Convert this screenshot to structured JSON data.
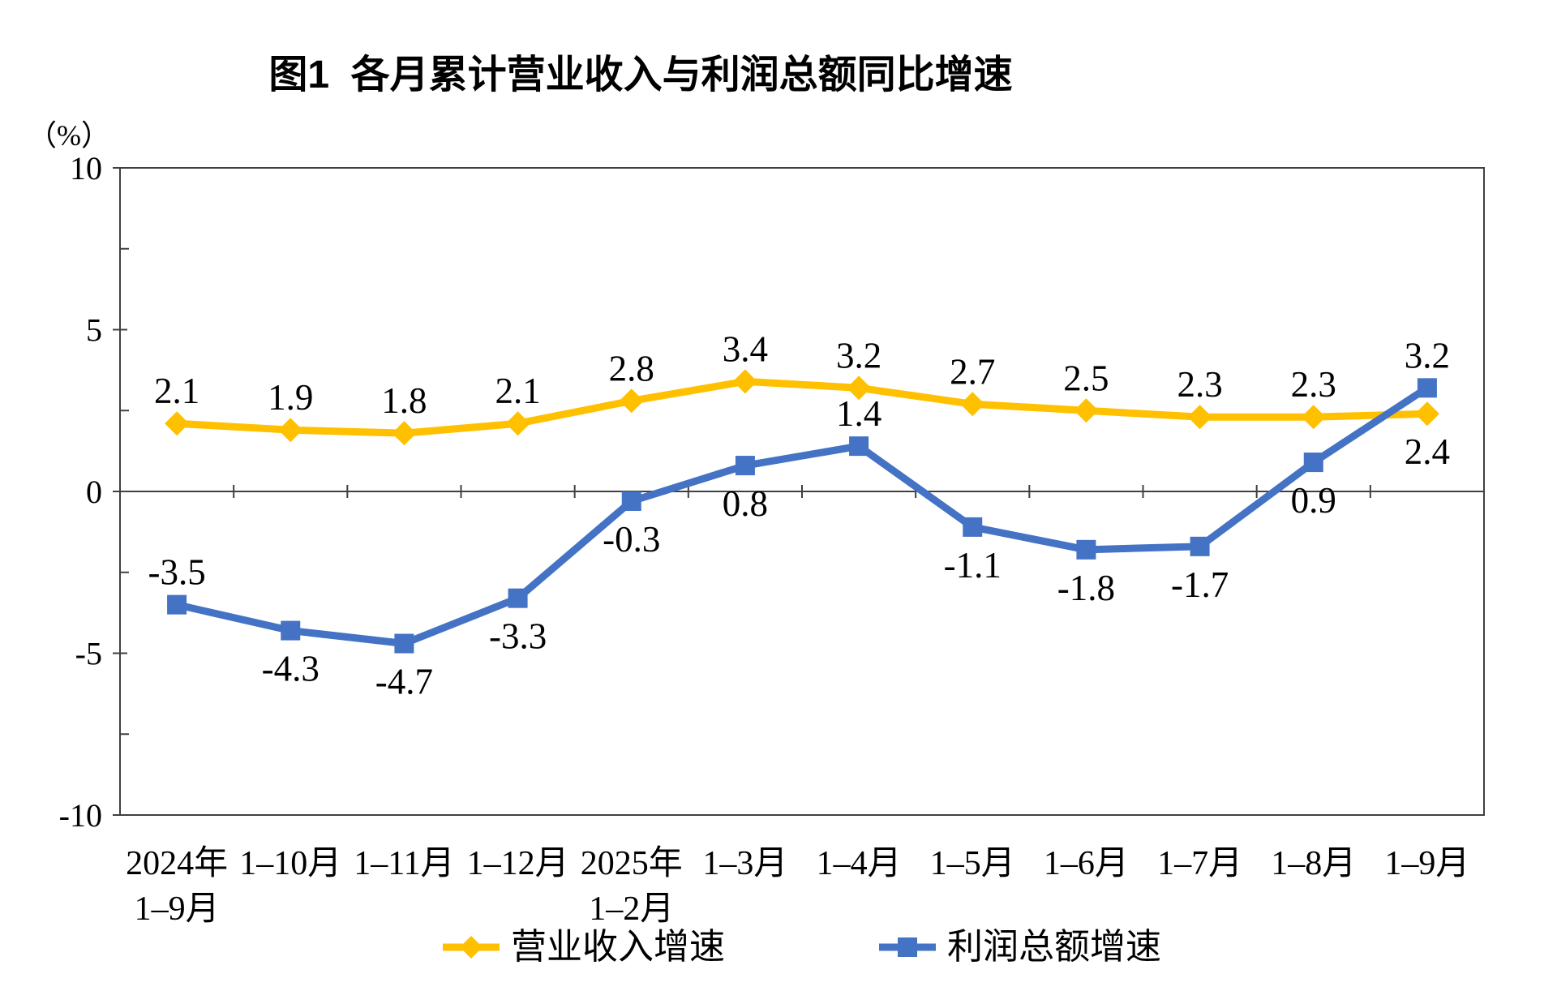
{
  "chart_data": {
    "type": "line",
    "title": "图1  各月累计营业收入与利润总额同比增速",
    "y_axis_unit": "（%）",
    "xlabel": "",
    "ylabel": "（%）",
    "categories": [
      "2024年\n1–9月",
      "1–10月",
      "1–11月",
      "1–12月",
      "2025年\n1–2月",
      "1–3月",
      "1–4月",
      "1–5月",
      "1–6月",
      "1–7月",
      "1–8月",
      "1–9月"
    ],
    "series": [
      {
        "name": "营业收入增速",
        "color": "#FFC000",
        "marker": "diamond",
        "values": [
          2.1,
          1.9,
          1.8,
          2.1,
          2.8,
          3.4,
          3.2,
          2.7,
          2.5,
          2.3,
          2.3,
          2.4
        ],
        "label_pos": [
          "above",
          "above",
          "above",
          "above",
          "above",
          "above",
          "above",
          "above",
          "above",
          "above",
          "above",
          "below"
        ]
      },
      {
        "name": "利润总额增速",
        "color": "#4472C4",
        "marker": "square",
        "values": [
          -3.5,
          -4.3,
          -4.7,
          -3.3,
          -0.3,
          0.8,
          1.4,
          -1.1,
          -1.8,
          -1.7,
          0.9,
          3.2
        ],
        "label_pos": [
          "above",
          "below",
          "below",
          "below",
          "below",
          "below",
          "above",
          "below",
          "below",
          "below",
          "below",
          "above"
        ]
      }
    ],
    "ylim": [
      -10,
      10
    ],
    "y_ticks": [
      10,
      5,
      0,
      -5,
      -10
    ],
    "y_minor_ticks": [
      7.5,
      2.5,
      -2.5,
      -7.5
    ],
    "grid": false,
    "legend_position": "bottom",
    "axis_color": "#404040",
    "text_color": "#000000"
  }
}
